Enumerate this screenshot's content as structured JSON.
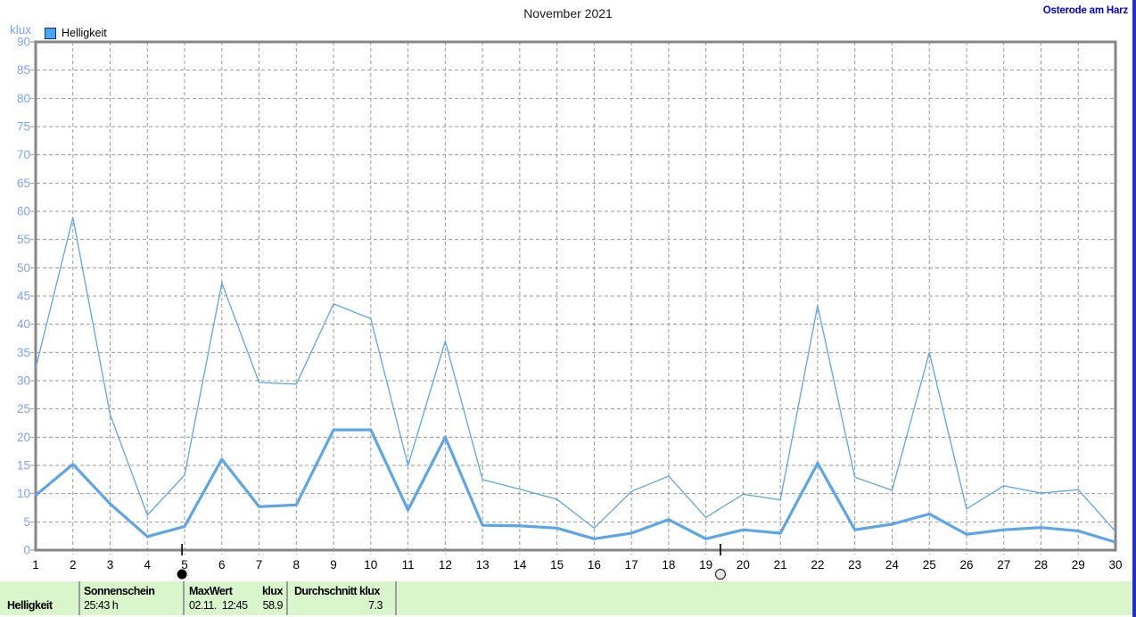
{
  "header": {
    "title": "November 2021",
    "location": "Osterode am Harz"
  },
  "legend": {
    "label": "Helligkeit"
  },
  "chart_data": {
    "type": "line",
    "title": "November 2021",
    "ylabel": "klux",
    "xlabel": "",
    "ylim": [
      0,
      90
    ],
    "ytick_step": 5,
    "grid": true,
    "legend": [
      "Helligkeit"
    ],
    "legend_position": "top-left",
    "line_color": "#5ca6e8",
    "x": [
      1,
      2,
      3,
      4,
      5,
      6,
      7,
      8,
      9,
      10,
      11,
      12,
      13,
      14,
      15,
      16,
      17,
      18,
      19,
      20,
      21,
      22,
      23,
      24,
      25,
      26,
      27,
      28,
      29,
      30
    ],
    "series": [
      {
        "name": "MaxWert",
        "values": [
          32.2,
          58.9,
          24,
          6.2,
          13.3,
          47.3,
          29.7,
          29.4,
          43.6,
          41,
          15,
          37,
          12.5,
          10.8,
          9,
          3.9,
          10.4,
          13.1,
          5.8,
          9.9,
          8.9,
          43.3,
          12.9,
          10.6,
          35,
          7.3,
          11.4,
          10.1,
          10.7,
          3.3
        ]
      },
      {
        "name": "Durchschnitt",
        "values": [
          9.7,
          15.2,
          8.2,
          2.4,
          4.2,
          16.1,
          7.7,
          8.0,
          21.3,
          21.3,
          7.1,
          20,
          4.4,
          4.3,
          3.9,
          2.0,
          3.0,
          5.4,
          2.0,
          3.6,
          3.0,
          15.4,
          3.6,
          4.6,
          6.4,
          2.8,
          3.6,
          4.0,
          3.4,
          1.4
        ]
      }
    ],
    "moon_markers": [
      {
        "symbol": "new-moon-filled-circle",
        "day": 4.93
      },
      {
        "symbol": "full-moon-open-circle",
        "day": 19.39
      }
    ]
  },
  "statusbar": {
    "row_label": "Helligkeit",
    "sunshine": {
      "header": "Sonnenschein",
      "value": "25:43 h"
    },
    "max": {
      "header": "MaxWert",
      "unit": "klux",
      "datetime": "02.11.  12:45",
      "value": "58.9"
    },
    "average": {
      "header": "Durchschnitt",
      "unit": "klux",
      "value": "7.3"
    }
  }
}
